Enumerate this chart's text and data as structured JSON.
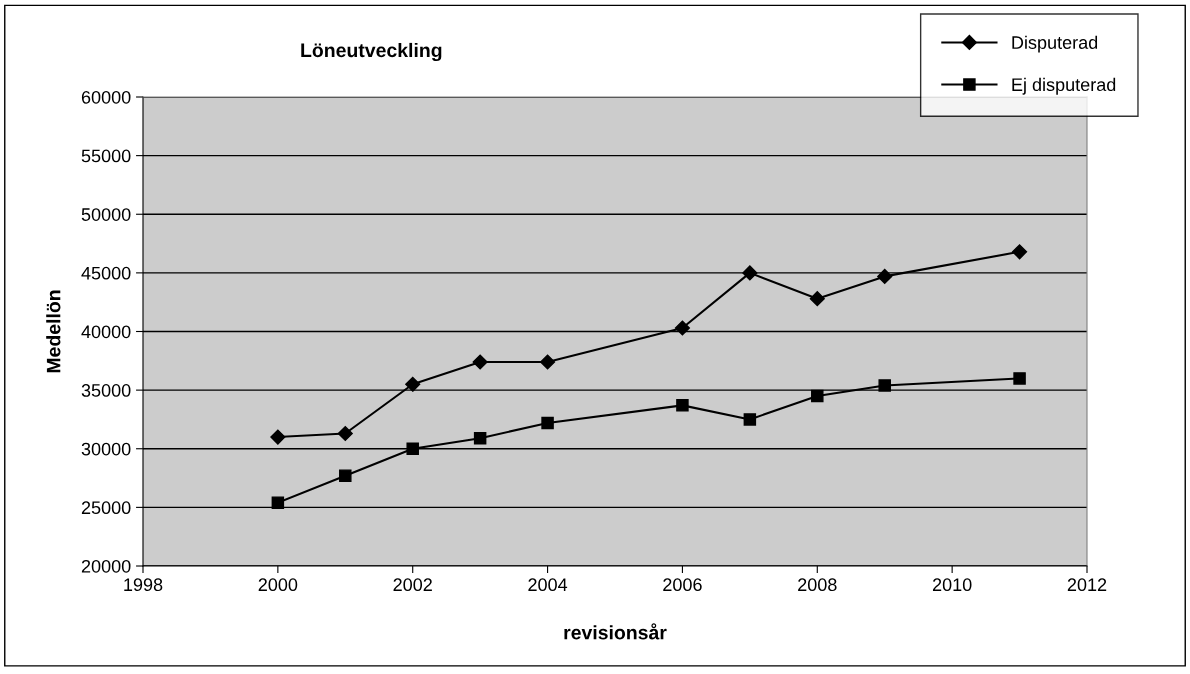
{
  "chart_data": {
    "type": "line",
    "title": "Löneutveckling",
    "xlabel": "revisionsår",
    "ylabel": "Medellön",
    "x": [
      2000,
      2001,
      2002,
      2003,
      2004,
      2006,
      2007,
      2008,
      2009,
      2011
    ],
    "series": [
      {
        "name": "Disputerad",
        "color": "#000000",
        "marker": "diamond",
        "values": [
          31000,
          31300,
          35500,
          37400,
          37400,
          40300,
          45000,
          42800,
          44700,
          46800
        ]
      },
      {
        "name": "Ej disputerad",
        "color": "#000000",
        "marker": "square",
        "values": [
          25400,
          27700,
          30000,
          30900,
          32200,
          33700,
          32500,
          34500,
          35400,
          36000
        ]
      }
    ],
    "xlim": [
      1998,
      2012
    ],
    "xticks": [
      1998,
      2000,
      2002,
      2004,
      2006,
      2008,
      2010,
      2012
    ],
    "ylim": [
      20000,
      60000
    ],
    "yticks": [
      20000,
      25000,
      30000,
      35000,
      40000,
      45000,
      50000,
      55000,
      60000
    ],
    "grid": "y",
    "legend": "top right",
    "line_style": "solid"
  }
}
